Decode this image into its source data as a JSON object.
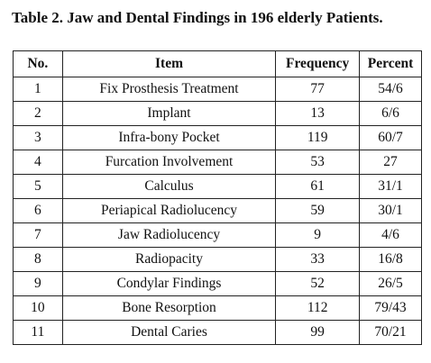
{
  "caption": "Table 2. Jaw and Dental Findings in 196 elderly Patients.",
  "table": {
    "headers": {
      "no": "No.",
      "item": "Item",
      "frequency": "Frequency",
      "percent": "Percent"
    },
    "rows": [
      {
        "no": "1",
        "item": "Fix Prosthesis Treatment",
        "frequency": "77",
        "percent": "54/6"
      },
      {
        "no": "2",
        "item": "Implant",
        "frequency": "13",
        "percent": "6/6"
      },
      {
        "no": "3",
        "item": "Infra-bony Pocket",
        "frequency": "119",
        "percent": "60/7"
      },
      {
        "no": "4",
        "item": "Furcation Involvement",
        "frequency": "53",
        "percent": "27"
      },
      {
        "no": "5",
        "item": "Calculus",
        "frequency": "61",
        "percent": "31/1"
      },
      {
        "no": "6",
        "item": "Periapical Radiolucency",
        "frequency": "59",
        "percent": "30/1"
      },
      {
        "no": "7",
        "item": "Jaw Radiolucency",
        "frequency": "9",
        "percent": "4/6"
      },
      {
        "no": "8",
        "item": "Radiopacity",
        "frequency": "33",
        "percent": "16/8"
      },
      {
        "no": "9",
        "item": "Condylar Findings",
        "frequency": "52",
        "percent": "26/5"
      },
      {
        "no": "10",
        "item": "Bone Resorption",
        "frequency": "112",
        "percent": "79/43"
      },
      {
        "no": "11",
        "item": "Dental Caries",
        "frequency": "99",
        "percent": "70/21"
      }
    ]
  }
}
